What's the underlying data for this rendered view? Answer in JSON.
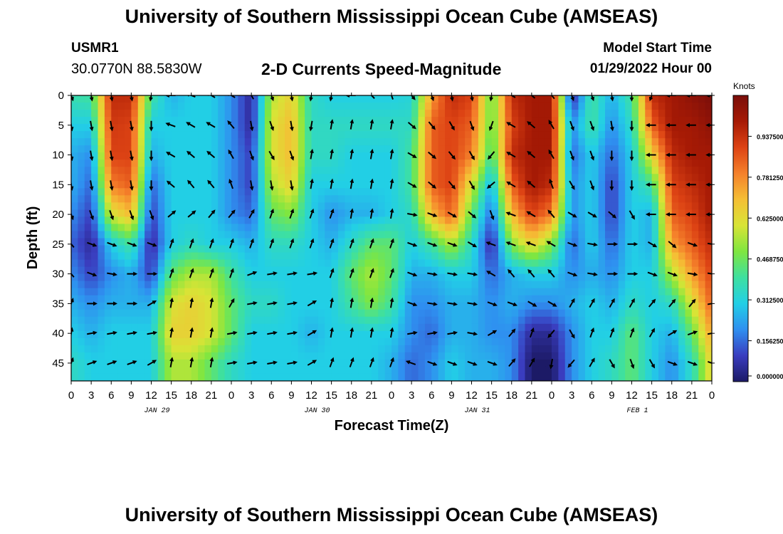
{
  "header": {
    "title": "University of Southern Mississippi Ocean Cube (AMSEAS)",
    "station_id": "USMR1",
    "coordinates": "30.0770N  88.5830W",
    "subtitle": "2-D Currents Speed-Magnitude",
    "model_start_label": "Model Start Time",
    "model_start_value": "01/29/2022 Hour 00"
  },
  "footer": {
    "title": "University of Southern Mississippi Ocean Cube (AMSEAS)"
  },
  "colors": {
    "scale": [
      "#1c1a66",
      "#3a3dbf",
      "#2f8ff0",
      "#22cfe6",
      "#3ee0a0",
      "#7fe640",
      "#d8e436",
      "#f5bf35",
      "#f5812b",
      "#dd4314",
      "#a61a05",
      "#7a0e0a"
    ]
  },
  "chart_data": {
    "type": "heatmap",
    "title": "2-D Currents Speed-Magnitude",
    "xlabel": "Forecast Time(Z)",
    "ylabel": "Depth (ft)",
    "x_hours": [
      0,
      3,
      6,
      9,
      12,
      15,
      18,
      21,
      24,
      27,
      30,
      33,
      36,
      39,
      42,
      45,
      48,
      51,
      54,
      57,
      60,
      63,
      66,
      69,
      72,
      75,
      78,
      81,
      84,
      87,
      90,
      93,
      96
    ],
    "x_tick_labels": [
      "0",
      "3",
      "6",
      "9",
      "12",
      "15",
      "18",
      "21",
      "0",
      "3",
      "6",
      "9",
      "12",
      "15",
      "18",
      "21",
      "0",
      "3",
      "6",
      "9",
      "12",
      "15",
      "18",
      "21",
      "0",
      "3",
      "6",
      "9",
      "12",
      "15",
      "18",
      "21",
      "0"
    ],
    "date_labels": [
      {
        "text": "JAN 29",
        "hour": 12
      },
      {
        "text": "JAN 30",
        "hour": 36
      },
      {
        "text": "JAN 31",
        "hour": 60
      },
      {
        "text": "FEB 1",
        "hour": 84
      }
    ],
    "y_ticks": [
      0,
      5,
      10,
      15,
      20,
      25,
      30,
      35,
      40,
      45
    ],
    "ylim": [
      0,
      48
    ],
    "xlim": [
      0,
      96
    ],
    "colorbar": {
      "units": "Knots",
      "range": [
        0,
        1.09375
      ],
      "tick_labels": [
        "0.000000",
        "0.156250",
        "0.312500",
        "0.468750",
        "0.625000",
        "0.781250",
        "0.937500"
      ],
      "tick_values": [
        0,
        0.15625,
        0.3125,
        0.46875,
        0.625,
        0.78125,
        0.9375
      ]
    },
    "speed_grid": {
      "hours": [
        0,
        3,
        6,
        9,
        12,
        15,
        18,
        21,
        24,
        27,
        30,
        33,
        36,
        39,
        42,
        45,
        48,
        51,
        54,
        57,
        60,
        63,
        66,
        69,
        72,
        75,
        78,
        81,
        84,
        87,
        90,
        93,
        96
      ],
      "depths": [
        0,
        5,
        10,
        15,
        20,
        25,
        30,
        35,
        40,
        45
      ],
      "values": [
        [
          0.38,
          0.4,
          0.95,
          0.95,
          0.4,
          0.25,
          0.3,
          0.3,
          0.2,
          0.05,
          0.55,
          0.65,
          0.35,
          0.3,
          0.3,
          0.3,
          0.3,
          0.32,
          0.75,
          0.95,
          0.9,
          0.45,
          0.95,
          1.0,
          1.0,
          0.05,
          0.4,
          0.25,
          0.4,
          0.95,
          1.0,
          1.05,
          1.09
        ],
        [
          0.3,
          0.3,
          0.92,
          0.9,
          0.3,
          0.3,
          0.3,
          0.3,
          0.2,
          0.05,
          0.6,
          0.7,
          0.35,
          0.35,
          0.35,
          0.35,
          0.35,
          0.35,
          0.85,
          0.9,
          0.85,
          0.45,
          0.9,
          1.0,
          1.0,
          0.2,
          0.4,
          0.2,
          0.35,
          0.85,
          1.0,
          1.0,
          1.05
        ],
        [
          0.25,
          0.2,
          0.9,
          0.9,
          0.25,
          0.3,
          0.3,
          0.3,
          0.2,
          0.1,
          0.6,
          0.7,
          0.35,
          0.35,
          0.3,
          0.3,
          0.3,
          0.4,
          0.85,
          0.9,
          0.8,
          0.4,
          0.95,
          1.0,
          1.0,
          0.15,
          0.3,
          0.15,
          0.3,
          0.65,
          0.95,
          1.0,
          1.0
        ],
        [
          0.25,
          0.15,
          0.8,
          0.85,
          0.15,
          0.3,
          0.3,
          0.3,
          0.2,
          0.1,
          0.55,
          0.65,
          0.3,
          0.3,
          0.3,
          0.3,
          0.3,
          0.4,
          0.85,
          0.9,
          0.6,
          0.25,
          0.85,
          1.0,
          0.95,
          0.2,
          0.3,
          0.1,
          0.3,
          0.4,
          0.9,
          0.95,
          1.0
        ],
        [
          0.2,
          0.1,
          0.6,
          0.7,
          0.1,
          0.3,
          0.3,
          0.3,
          0.2,
          0.15,
          0.45,
          0.5,
          0.3,
          0.2,
          0.25,
          0.25,
          0.3,
          0.35,
          0.7,
          0.85,
          0.45,
          0.15,
          0.7,
          0.9,
          0.8,
          0.2,
          0.3,
          0.1,
          0.3,
          0.25,
          0.85,
          0.9,
          1.0
        ],
        [
          0.15,
          0.05,
          0.3,
          0.4,
          0.05,
          0.3,
          0.35,
          0.3,
          0.3,
          0.25,
          0.35,
          0.35,
          0.3,
          0.25,
          0.35,
          0.45,
          0.45,
          0.3,
          0.4,
          0.55,
          0.35,
          0.05,
          0.5,
          0.65,
          0.5,
          0.15,
          0.3,
          0.15,
          0.3,
          0.25,
          0.75,
          0.85,
          0.95
        ],
        [
          0.2,
          0.1,
          0.2,
          0.25,
          0.1,
          0.45,
          0.55,
          0.55,
          0.4,
          0.3,
          0.3,
          0.3,
          0.3,
          0.3,
          0.45,
          0.55,
          0.45,
          0.25,
          0.25,
          0.3,
          0.3,
          0.15,
          0.25,
          0.3,
          0.3,
          0.2,
          0.25,
          0.2,
          0.3,
          0.3,
          0.55,
          0.75,
          0.9
        ],
        [
          0.25,
          0.2,
          0.25,
          0.25,
          0.25,
          0.6,
          0.65,
          0.6,
          0.45,
          0.35,
          0.35,
          0.3,
          0.3,
          0.3,
          0.4,
          0.5,
          0.4,
          0.2,
          0.2,
          0.25,
          0.25,
          0.2,
          0.25,
          0.2,
          0.2,
          0.25,
          0.3,
          0.25,
          0.35,
          0.3,
          0.35,
          0.6,
          0.85
        ],
        [
          0.3,
          0.25,
          0.3,
          0.3,
          0.3,
          0.65,
          0.65,
          0.6,
          0.45,
          0.3,
          0.3,
          0.3,
          0.25,
          0.3,
          0.3,
          0.3,
          0.3,
          0.2,
          0.15,
          0.25,
          0.25,
          0.2,
          0.2,
          0.05,
          0.05,
          0.2,
          0.3,
          0.3,
          0.45,
          0.3,
          0.25,
          0.45,
          0.75
        ],
        [
          0.35,
          0.3,
          0.3,
          0.3,
          0.3,
          0.55,
          0.55,
          0.45,
          0.35,
          0.3,
          0.3,
          0.3,
          0.3,
          0.3,
          0.3,
          0.3,
          0.25,
          0.15,
          0.2,
          0.3,
          0.25,
          0.25,
          0.2,
          0.0,
          0.0,
          0.2,
          0.3,
          0.35,
          0.45,
          0.3,
          0.2,
          0.35,
          0.65
        ]
      ]
    },
    "direction_grid": {
      "description": "current direction in degrees clockwise from north (direction the arrow points)",
      "hours": [
        0,
        3,
        6,
        9,
        12,
        15,
        18,
        21,
        24,
        27,
        30,
        33,
        36,
        39,
        42,
        45,
        48,
        51,
        54,
        57,
        60,
        63,
        66,
        69,
        72,
        75,
        78,
        81,
        84,
        87,
        90,
        93,
        96
      ],
      "depths": [
        0,
        5,
        10,
        15,
        20,
        25,
        30,
        35,
        40,
        45
      ],
      "values": [
        [
          160,
          170,
          170,
          170,
          190,
          270,
          290,
          300,
          300,
          330,
          160,
          170,
          190,
          190,
          270,
          315,
          340,
          140,
          160,
          170,
          170,
          190,
          300,
          310,
          320,
          160,
          160,
          170,
          180,
          200,
          270,
          270,
          270
        ],
        [
          170,
          170,
          170,
          170,
          180,
          290,
          300,
          300,
          320,
          170,
          160,
          170,
          190,
          10,
          10,
          10,
          10,
          130,
          140,
          150,
          160,
          200,
          300,
          310,
          330,
          160,
          160,
          170,
          180,
          270,
          270,
          270,
          270
        ],
        [
          170,
          170,
          170,
          170,
          180,
          300,
          310,
          310,
          330,
          160,
          150,
          160,
          10,
          10,
          10,
          10,
          10,
          120,
          130,
          140,
          150,
          220,
          300,
          310,
          330,
          160,
          160,
          180,
          180,
          270,
          270,
          270,
          270
        ],
        [
          170,
          170,
          170,
          170,
          180,
          310,
          320,
          320,
          340,
          170,
          170,
          170,
          10,
          10,
          10,
          10,
          10,
          120,
          130,
          140,
          150,
          230,
          300,
          310,
          340,
          150,
          160,
          180,
          180,
          270,
          270,
          270,
          270
        ],
        [
          160,
          160,
          160,
          160,
          160,
          50,
          50,
          40,
          40,
          30,
          20,
          20,
          20,
          20,
          10,
          10,
          10,
          100,
          110,
          120,
          130,
          160,
          290,
          300,
          320,
          120,
          120,
          130,
          150,
          270,
          270,
          270,
          270
        ],
        [
          320,
          110,
          110,
          110,
          110,
          20,
          20,
          20,
          20,
          20,
          20,
          20,
          20,
          20,
          20,
          20,
          20,
          110,
          110,
          110,
          120,
          290,
          290,
          290,
          300,
          110,
          100,
          90,
          90,
          120,
          130,
          110,
          100
        ],
        [
          320,
          110,
          100,
          90,
          90,
          20,
          20,
          20,
          20,
          70,
          80,
          80,
          80,
          20,
          20,
          20,
          20,
          110,
          100,
          100,
          100,
          300,
          320,
          320,
          320,
          110,
          100,
          90,
          90,
          110,
          110,
          100,
          100
        ],
        [
          20,
          90,
          90,
          90,
          60,
          10,
          10,
          10,
          30,
          80,
          80,
          80,
          60,
          10,
          10,
          10,
          10,
          110,
          100,
          100,
          100,
          110,
          110,
          120,
          120,
          30,
          30,
          30,
          30,
          40,
          40,
          40,
          80
        ],
        [
          10,
          80,
          80,
          80,
          80,
          10,
          10,
          10,
          80,
          80,
          80,
          80,
          60,
          10,
          10,
          10,
          10,
          80,
          80,
          80,
          100,
          60,
          40,
          20,
          220,
          150,
          20,
          20,
          20,
          30,
          60,
          70,
          80
        ],
        [
          20,
          70,
          70,
          70,
          60,
          10,
          10,
          10,
          80,
          80,
          80,
          80,
          60,
          20,
          20,
          20,
          20,
          290,
          110,
          110,
          110,
          110,
          40,
          30,
          190,
          220,
          30,
          150,
          160,
          150,
          110,
          110,
          110
        ]
      ]
    }
  }
}
